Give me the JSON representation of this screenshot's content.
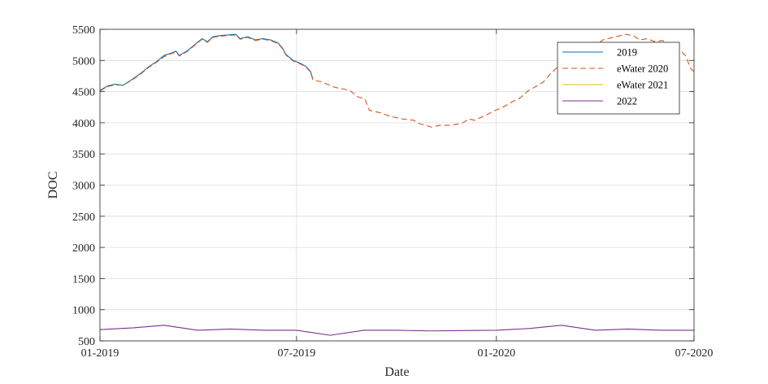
{
  "chart_data": {
    "type": "line",
    "title": "",
    "xlabel": "Date",
    "ylabel": "DOC",
    "x_ticks": [
      "01-2019",
      "07-2019",
      "01-2020",
      "07-2020"
    ],
    "x_range": [
      "2019-01-01",
      "2020-07-01"
    ],
    "y_ticks": [
      500,
      1000,
      1500,
      2000,
      2500,
      3000,
      3500,
      4000,
      4500,
      5000,
      5500
    ],
    "ylim": [
      500,
      5500
    ],
    "grid": true,
    "legend_position": "top-right",
    "series": [
      {
        "name": "2019",
        "color": "#0072BD",
        "style": "solid",
        "points": [
          [
            "2019-01-01",
            4520
          ],
          [
            "2019-01-08",
            4590
          ],
          [
            "2019-01-15",
            4620
          ],
          [
            "2019-01-22",
            4600
          ],
          [
            "2019-01-31",
            4700
          ],
          [
            "2019-02-08",
            4800
          ],
          [
            "2019-02-15",
            4900
          ],
          [
            "2019-02-22",
            4980
          ],
          [
            "2019-03-01",
            5080
          ],
          [
            "2019-03-08",
            5120
          ],
          [
            "2019-03-12",
            5150
          ],
          [
            "2019-03-15",
            5080
          ],
          [
            "2019-03-22",
            5150
          ],
          [
            "2019-03-29",
            5250
          ],
          [
            "2019-04-05",
            5350
          ],
          [
            "2019-04-10",
            5300
          ],
          [
            "2019-04-15",
            5380
          ],
          [
            "2019-04-22",
            5400
          ],
          [
            "2019-04-29",
            5410
          ],
          [
            "2019-05-06",
            5420
          ],
          [
            "2019-05-10",
            5350
          ],
          [
            "2019-05-17",
            5380
          ],
          [
            "2019-05-24",
            5330
          ],
          [
            "2019-05-31",
            5350
          ],
          [
            "2019-06-07",
            5330
          ],
          [
            "2019-06-14",
            5280
          ],
          [
            "2019-06-18",
            5200
          ],
          [
            "2019-06-21",
            5100
          ],
          [
            "2019-06-28",
            5000
          ],
          [
            "2019-07-05",
            4950
          ],
          [
            "2019-07-10",
            4900
          ],
          [
            "2019-07-14",
            4820
          ],
          [
            "2019-07-16",
            4700
          ]
        ]
      },
      {
        "name": "eWater 2020",
        "color": "#D95319",
        "style": "dashed",
        "points": [
          [
            "2019-01-01",
            4510
          ],
          [
            "2019-01-08",
            4580
          ],
          [
            "2019-01-15",
            4610
          ],
          [
            "2019-01-22",
            4600
          ],
          [
            "2019-01-31",
            4690
          ],
          [
            "2019-02-08",
            4790
          ],
          [
            "2019-02-15",
            4890
          ],
          [
            "2019-02-22",
            4970
          ],
          [
            "2019-03-01",
            5060
          ],
          [
            "2019-03-08",
            5110
          ],
          [
            "2019-03-12",
            5140
          ],
          [
            "2019-03-15",
            5070
          ],
          [
            "2019-03-22",
            5140
          ],
          [
            "2019-03-29",
            5240
          ],
          [
            "2019-04-05",
            5340
          ],
          [
            "2019-04-10",
            5290
          ],
          [
            "2019-04-15",
            5370
          ],
          [
            "2019-04-22",
            5390
          ],
          [
            "2019-04-29",
            5400
          ],
          [
            "2019-05-06",
            5410
          ],
          [
            "2019-05-10",
            5340
          ],
          [
            "2019-05-17",
            5370
          ],
          [
            "2019-05-24",
            5320
          ],
          [
            "2019-05-31",
            5340
          ],
          [
            "2019-06-07",
            5320
          ],
          [
            "2019-06-14",
            5270
          ],
          [
            "2019-06-18",
            5190
          ],
          [
            "2019-06-21",
            5090
          ],
          [
            "2019-06-28",
            4990
          ],
          [
            "2019-07-05",
            4940
          ],
          [
            "2019-07-10",
            4890
          ],
          [
            "2019-07-14",
            4810
          ],
          [
            "2019-07-16",
            4690
          ],
          [
            "2019-07-25",
            4650
          ],
          [
            "2019-08-05",
            4570
          ],
          [
            "2019-08-19",
            4520
          ],
          [
            "2019-08-26",
            4420
          ],
          [
            "2019-09-02",
            4380
          ],
          [
            "2019-09-06",
            4200
          ],
          [
            "2019-09-16",
            4160
          ],
          [
            "2019-09-26",
            4100
          ],
          [
            "2019-10-07",
            4060
          ],
          [
            "2019-10-17",
            4040
          ],
          [
            "2019-10-23",
            3980
          ],
          [
            "2019-10-28",
            3960
          ],
          [
            "2019-11-02",
            3930
          ],
          [
            "2019-11-10",
            3960
          ],
          [
            "2019-11-20",
            3960
          ],
          [
            "2019-11-30",
            3990
          ],
          [
            "2019-12-07",
            4060
          ],
          [
            "2019-12-12",
            4040
          ],
          [
            "2019-12-21",
            4110
          ],
          [
            "2019-12-30",
            4190
          ],
          [
            "2020-01-08",
            4260
          ],
          [
            "2020-01-16",
            4340
          ],
          [
            "2020-01-23",
            4400
          ],
          [
            "2020-01-30",
            4510
          ],
          [
            "2020-02-06",
            4580
          ],
          [
            "2020-02-13",
            4650
          ],
          [
            "2020-02-20",
            4790
          ],
          [
            "2020-02-28",
            4920
          ],
          [
            "2020-03-06",
            5050
          ],
          [
            "2020-03-11",
            5130
          ],
          [
            "2020-03-15",
            5080
          ],
          [
            "2020-03-22",
            5190
          ],
          [
            "2020-03-29",
            5300
          ],
          [
            "2020-04-02",
            5250
          ],
          [
            "2020-04-08",
            5330
          ],
          [
            "2020-04-15",
            5360
          ],
          [
            "2020-04-22",
            5390
          ],
          [
            "2020-04-29",
            5420
          ],
          [
            "2020-05-06",
            5400
          ],
          [
            "2020-05-12",
            5330
          ],
          [
            "2020-05-19",
            5350
          ],
          [
            "2020-05-26",
            5300
          ],
          [
            "2020-06-02",
            5320
          ],
          [
            "2020-06-09",
            5260
          ],
          [
            "2020-06-16",
            5200
          ],
          [
            "2020-06-23",
            5080
          ],
          [
            "2020-06-28",
            4870
          ],
          [
            "2020-07-01",
            4820
          ]
        ]
      },
      {
        "name": "eWater 2021",
        "color": "#EDB120",
        "style": "solid",
        "points": []
      },
      {
        "name": "2022",
        "color": "#7E2F8E",
        "style": "solid",
        "points": [
          [
            "2019-01-01",
            680
          ],
          [
            "2019-02-01",
            710
          ],
          [
            "2019-03-01",
            750
          ],
          [
            "2019-04-01",
            670
          ],
          [
            "2019-05-01",
            690
          ],
          [
            "2019-06-01",
            670
          ],
          [
            "2019-07-01",
            670
          ],
          [
            "2019-08-01",
            590
          ],
          [
            "2019-09-01",
            670
          ],
          [
            "2019-10-01",
            670
          ],
          [
            "2019-11-01",
            660
          ],
          [
            "2019-12-01",
            665
          ],
          [
            "2020-01-01",
            670
          ],
          [
            "2020-02-01",
            700
          ],
          [
            "2020-03-01",
            750
          ],
          [
            "2020-04-01",
            670
          ],
          [
            "2020-05-01",
            690
          ],
          [
            "2020-06-01",
            670
          ],
          [
            "2020-07-01",
            670
          ],
          [
            "2020-07-31",
            620
          ]
        ]
      }
    ]
  }
}
